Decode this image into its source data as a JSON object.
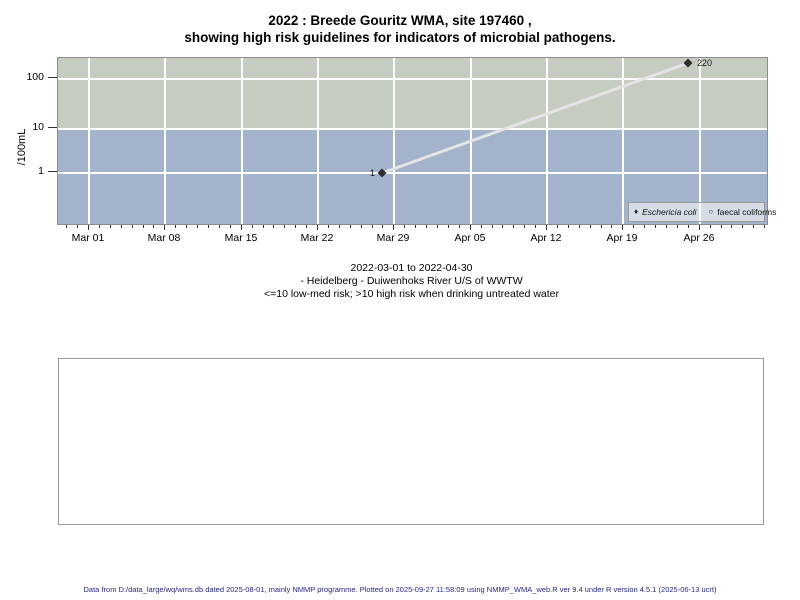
{
  "title": {
    "line1": "2022 : Breede Gouritz WMA, site 197460 ,",
    "line2": "showing high risk guidelines for indicators of microbial pathogens."
  },
  "chart_data": {
    "type": "scatter",
    "title": "2022 : Breede Gouritz WMA, site 197460 , showing high risk guidelines for indicators of microbial pathogens.",
    "ylabel": "/100mL",
    "y_scale": "log",
    "y_ticks": [
      "1",
      "10",
      "100"
    ],
    "ylim_approx": [
      0.07,
      300
    ],
    "x_ticks": [
      "Mar 01",
      "Mar 08",
      "Mar 15",
      "Mar 22",
      "Mar 29",
      "Apr 05",
      "Apr 12",
      "Apr 19",
      "Apr 26"
    ],
    "x_range": [
      "2022-03-01",
      "2022-04-30"
    ],
    "grid": true,
    "legend_position": "bottom-right-inside",
    "series": [
      {
        "name": "Eschericia coli",
        "marker": "filled-diamond",
        "line_color": "#e4e4e4",
        "marker_color": "#2e2e2e",
        "points": [
          {
            "x": "Mar 28",
            "value": 1,
            "label": "1"
          },
          {
            "x": "Apr 25",
            "value": 220,
            "label": "220"
          }
        ]
      },
      {
        "name": "faecal coliforms",
        "marker": "open-circle",
        "points": []
      }
    ],
    "risk_regions": [
      {
        "name": "high risk",
        "condition": ">10",
        "color": "#c5cdc1"
      },
      {
        "name": "low-med risk",
        "condition": "<=10",
        "color": "#a3b3cb"
      }
    ]
  },
  "legend": {
    "ecoli_label": "Eschericia coli",
    "ecoli_marker": "♦",
    "faecal_label": "faecal coliforms",
    "faecal_marker": "○"
  },
  "point_labels": {
    "p1": "1",
    "p2": "220"
  },
  "caption": {
    "line1": "2022-03-01 to 2022-04-30",
    "line2": "- Heidelberg - Duiwenhoks River U/S of WWTW",
    "line3": "<=10 low-med risk; >10 high risk when drinking untreated water"
  },
  "footer": "Data from D:/data_large/wq/wms.db dated 2025-08-01, mainly NMMP programme. Plotted on 2025-09-27 11:58:09 using NMMP_WMA_web.R ver 9.4 under R version 4.5.1 (2025-06-13 ucrt)"
}
